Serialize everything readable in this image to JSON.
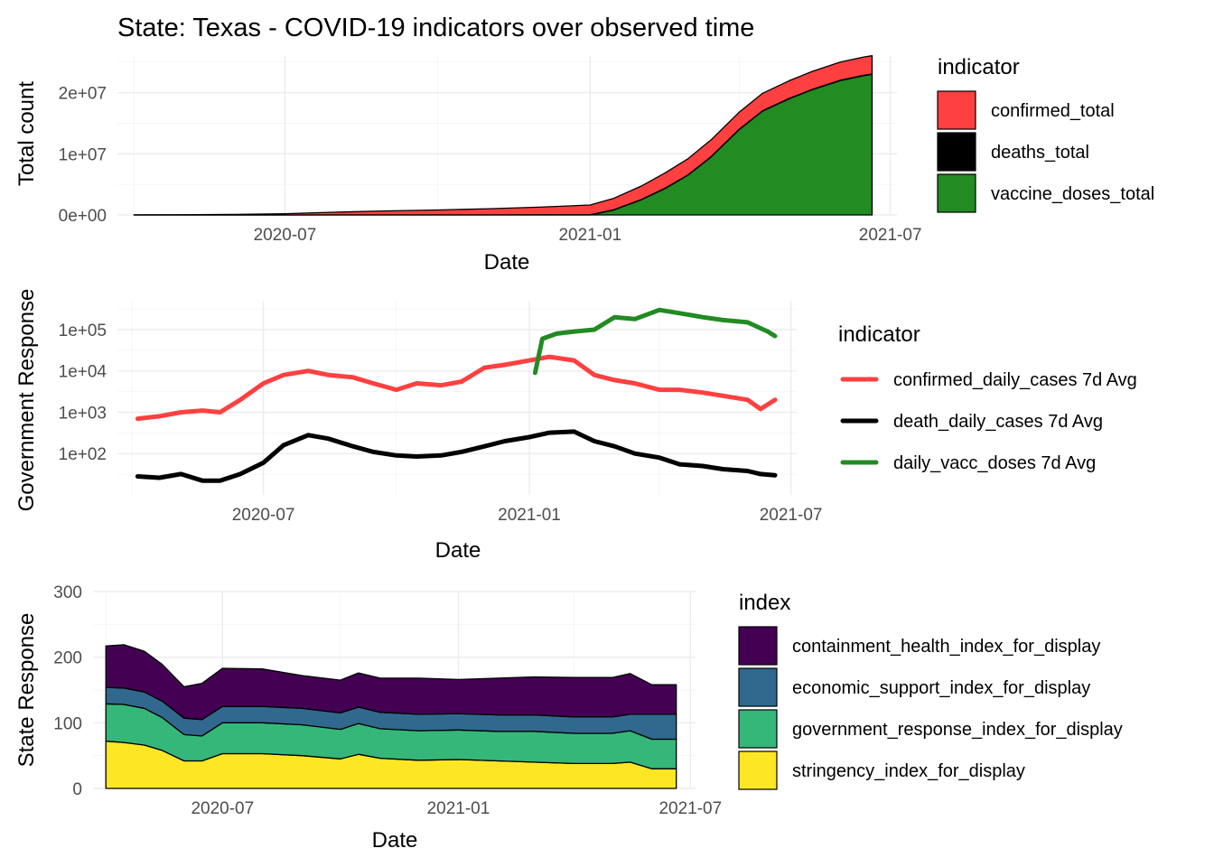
{
  "title": "State: Texas - COVID-19 indicators over observed time",
  "chart_data": [
    {
      "type": "area",
      "stacked": true,
      "xlabel": "Date",
      "ylabel": "Total count",
      "x_ticks": [
        "2020-07",
        "2021-01",
        "2021-07"
      ],
      "y_ticks": [
        "0e+00",
        "1e+07",
        "2e+07"
      ],
      "ylim": [
        0,
        26000000
      ],
      "grid": true,
      "legend": {
        "title": "indicator",
        "position": "right"
      },
      "x": [
        "2020-04-01",
        "2020-05-01",
        "2020-06-01",
        "2020-07-01",
        "2020-08-01",
        "2020-09-01",
        "2020-10-01",
        "2020-11-01",
        "2020-12-01",
        "2021-01-01",
        "2021-01-15",
        "2021-02-01",
        "2021-02-15",
        "2021-03-01",
        "2021-03-15",
        "2021-04-01",
        "2021-04-15",
        "2021-05-01",
        "2021-05-15",
        "2021-06-01",
        "2021-06-15",
        "2021-06-20"
      ],
      "series": [
        {
          "name": "vaccine_doses_total",
          "color": "#228B22",
          "values": [
            0,
            0,
            0,
            0,
            0,
            0,
            0,
            0,
            0,
            0,
            800000,
            2500000,
            4300000,
            6500000,
            9500000,
            14000000,
            17000000,
            19000000,
            20500000,
            22000000,
            22800000,
            23000000
          ]
        },
        {
          "name": "deaths_total",
          "color": "#000000",
          "values": [
            0,
            1000,
            2000,
            3000,
            8000,
            13000,
            17000,
            20000,
            23000,
            28000,
            32000,
            38000,
            42000,
            46000,
            47000,
            48000,
            49000,
            50000,
            50500,
            51000,
            51500,
            51600
          ]
        },
        {
          "name": "confirmed_total",
          "color": "#FF4040",
          "values": [
            10000,
            35000,
            90000,
            200000,
            450000,
            650000,
            800000,
            1000000,
            1250000,
            1600000,
            1850000,
            2200000,
            2500000,
            2650000,
            2750000,
            2800000,
            2850000,
            2900000,
            2940000,
            2970000,
            2990000,
            3000000
          ]
        }
      ]
    },
    {
      "type": "line",
      "xlabel": "Date",
      "ylabel": "Government Response",
      "x_ticks": [
        "2020-07",
        "2021-01",
        "2021-07"
      ],
      "y_ticks": [
        "1e+02",
        "1e+03",
        "1e+04",
        "1e+05"
      ],
      "y_scale": "log10",
      "ylim": [
        10,
        500000
      ],
      "grid": true,
      "legend": {
        "title": "indicator",
        "position": "right"
      },
      "series": [
        {
          "name": "confirmed_daily_cases 7d Avg",
          "color": "#FF4040",
          "x": [
            "2020-04-05",
            "2020-04-20",
            "2020-05-05",
            "2020-05-20",
            "2020-06-01",
            "2020-06-15",
            "2020-07-01",
            "2020-07-15",
            "2020-08-01",
            "2020-08-15",
            "2020-09-01",
            "2020-09-15",
            "2020-10-01",
            "2020-10-15",
            "2020-11-01",
            "2020-11-15",
            "2020-12-01",
            "2020-12-15",
            "2021-01-01",
            "2021-01-15",
            "2021-02-01",
            "2021-02-15",
            "2021-03-01",
            "2021-03-15",
            "2021-04-01",
            "2021-04-15",
            "2021-05-01",
            "2021-05-15",
            "2021-06-01",
            "2021-06-10",
            "2021-06-20"
          ],
          "values": [
            700,
            800,
            1000,
            1100,
            1000,
            2000,
            5000,
            8000,
            10000,
            8000,
            7000,
            5000,
            3500,
            5000,
            4500,
            5500,
            12000,
            14000,
            18000,
            22000,
            18000,
            8000,
            6000,
            5000,
            3500,
            3500,
            3000,
            2500,
            2000,
            1200,
            2000
          ]
        },
        {
          "name": "death_daily_cases 7d Avg",
          "color": "#000000",
          "x": [
            "2020-04-05",
            "2020-04-20",
            "2020-05-05",
            "2020-05-20",
            "2020-06-01",
            "2020-06-15",
            "2020-07-01",
            "2020-07-15",
            "2020-08-01",
            "2020-08-15",
            "2020-09-01",
            "2020-09-15",
            "2020-10-01",
            "2020-10-15",
            "2020-11-01",
            "2020-11-15",
            "2020-12-01",
            "2020-12-15",
            "2021-01-01",
            "2021-01-15",
            "2021-02-01",
            "2021-02-15",
            "2021-03-01",
            "2021-03-15",
            "2021-04-01",
            "2021-04-15",
            "2021-05-01",
            "2021-05-15",
            "2021-06-01",
            "2021-06-10",
            "2021-06-20"
          ],
          "values": [
            28,
            26,
            32,
            22,
            22,
            32,
            60,
            160,
            280,
            230,
            150,
            110,
            90,
            85,
            90,
            110,
            150,
            200,
            250,
            320,
            340,
            200,
            150,
            100,
            80,
            55,
            50,
            42,
            38,
            32,
            30
          ]
        },
        {
          "name": "daily_vacc_doses 7d Avg",
          "color": "#228B22",
          "x": [
            "2021-01-05",
            "2021-01-10",
            "2021-01-20",
            "2021-02-01",
            "2021-02-15",
            "2021-03-01",
            "2021-03-15",
            "2021-04-01",
            "2021-04-15",
            "2021-05-01",
            "2021-05-15",
            "2021-06-01",
            "2021-06-15",
            "2021-06-20"
          ],
          "values": [
            9000,
            60000,
            80000,
            90000,
            100000,
            200000,
            180000,
            300000,
            250000,
            200000,
            170000,
            150000,
            90000,
            70000
          ]
        }
      ]
    },
    {
      "type": "area",
      "stacked": true,
      "xlabel": "Date",
      "ylabel": "State Response",
      "x_ticks": [
        "2020-07",
        "2021-01",
        "2021-07"
      ],
      "y_ticks": [
        "0",
        "100",
        "200",
        "300"
      ],
      "ylim": [
        0,
        300
      ],
      "grid": true,
      "legend": {
        "title": "index",
        "position": "right"
      },
      "x": [
        "2020-04-01",
        "2020-04-15",
        "2020-05-01",
        "2020-05-15",
        "2020-06-01",
        "2020-06-15",
        "2020-07-01",
        "2020-08-01",
        "2020-09-01",
        "2020-10-01",
        "2020-10-15",
        "2020-11-01",
        "2020-12-01",
        "2021-01-01",
        "2021-02-01",
        "2021-03-01",
        "2021-04-01",
        "2021-05-01",
        "2021-05-15",
        "2021-06-01",
        "2021-06-20"
      ],
      "series": [
        {
          "name": "stringency_index_for_display",
          "color": "#FDE725",
          "values": [
            72,
            70,
            66,
            58,
            42,
            42,
            53,
            53,
            50,
            45,
            52,
            46,
            43,
            44,
            42,
            40,
            38,
            38,
            40,
            30,
            30
          ]
        },
        {
          "name": "government_response_index_for_display",
          "color": "#35B779",
          "values": [
            57,
            58,
            56,
            50,
            40,
            38,
            47,
            47,
            47,
            45,
            47,
            45,
            45,
            45,
            45,
            47,
            46,
            46,
            48,
            45,
            45
          ]
        },
        {
          "name": "economic_support_index_for_display",
          "color": "#31688E",
          "values": [
            25,
            25,
            25,
            25,
            25,
            25,
            25,
            25,
            25,
            25,
            25,
            25,
            25,
            25,
            25,
            25,
            25,
            25,
            25,
            38,
            38
          ]
        },
        {
          "name": "containment_health_index_for_display",
          "color": "#440154",
          "values": [
            63,
            66,
            62,
            56,
            48,
            55,
            58,
            57,
            50,
            50,
            52,
            52,
            55,
            52,
            56,
            58,
            60,
            60,
            62,
            45,
            45
          ]
        }
      ]
    }
  ]
}
